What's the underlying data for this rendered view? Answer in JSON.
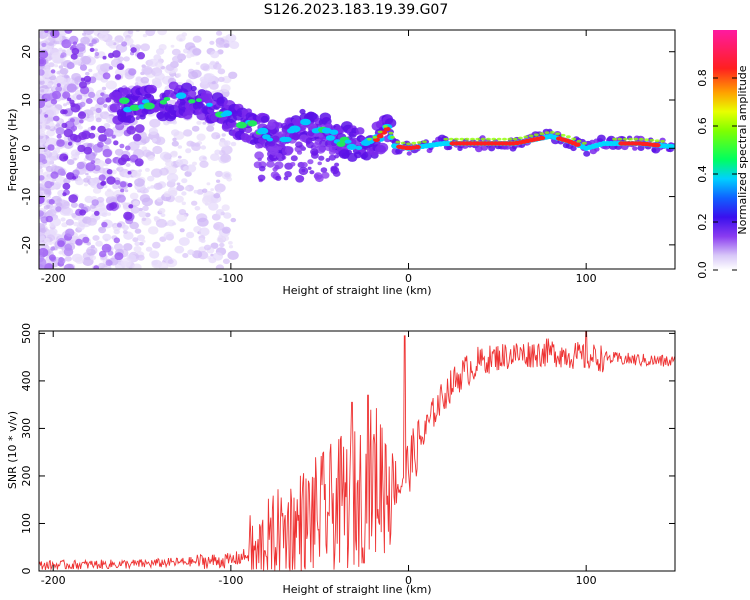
{
  "title": "S126.2023.183.19.39.G07",
  "chart_data": [
    {
      "type": "heatmap",
      "panel": "top",
      "xlabel": "Height of straight line (km)",
      "ylabel": "Frequency (Hz)",
      "xlim": [
        -208,
        150
      ],
      "ylim": [
        -25,
        24.5
      ],
      "x_ticks": [
        -200,
        -100,
        0,
        100
      ],
      "y_ticks": [
        -20,
        -10,
        0,
        10,
        20
      ],
      "colorbar": {
        "label": "Normalized spectral amplitude",
        "range": [
          0,
          1
        ],
        "ticks": [
          0.0,
          0.2,
          0.4,
          0.6,
          0.8
        ],
        "tick_labels": [
          "0.0",
          "0.2",
          "0.4",
          "0.6",
          "0.8"
        ]
      },
      "ridge": {
        "x": [
          -165,
          -150,
          -130,
          -120,
          -110,
          -100,
          -90,
          -80,
          -70,
          -60,
          -50,
          -40,
          -30,
          -20,
          -12,
          -8,
          0,
          20,
          40,
          60,
          80,
          90,
          100,
          110,
          130,
          150
        ],
        "freq": [
          9,
          9,
          10,
          9.5,
          8,
          6,
          5,
          3,
          1.5,
          5,
          4,
          2,
          1,
          1,
          4,
          0.5,
          0,
          1,
          1,
          1,
          2.5,
          1.5,
          0,
          1,
          1,
          0.3
        ]
      }
    },
    {
      "type": "line",
      "panel": "bottom",
      "xlabel": "Height of straight line (km)",
      "ylabel": "SNR (10 * v/v)",
      "xlim": [
        -208,
        150
      ],
      "ylim": [
        0,
        505
      ],
      "x_ticks": [
        -200,
        -100,
        0,
        100
      ],
      "y_ticks": [
        0,
        100,
        200,
        300,
        400,
        500
      ],
      "series": [
        {
          "name": "SNR",
          "color": "#ee3333",
          "trend_x": [
            -208,
            -150,
            -120,
            -100,
            -85,
            -70,
            -60,
            -50,
            -40,
            -30,
            -20,
            -10,
            -5,
            0,
            5,
            10,
            15,
            20,
            25,
            30,
            40,
            50,
            60,
            80,
            100,
            150
          ],
          "trend_y": [
            12,
            15,
            20,
            22,
            40,
            80,
            100,
            120,
            140,
            150,
            190,
            200,
            180,
            220,
            260,
            300,
            340,
            370,
            395,
            415,
            440,
            450,
            455,
            460,
            450,
            440
          ]
        }
      ]
    }
  ]
}
